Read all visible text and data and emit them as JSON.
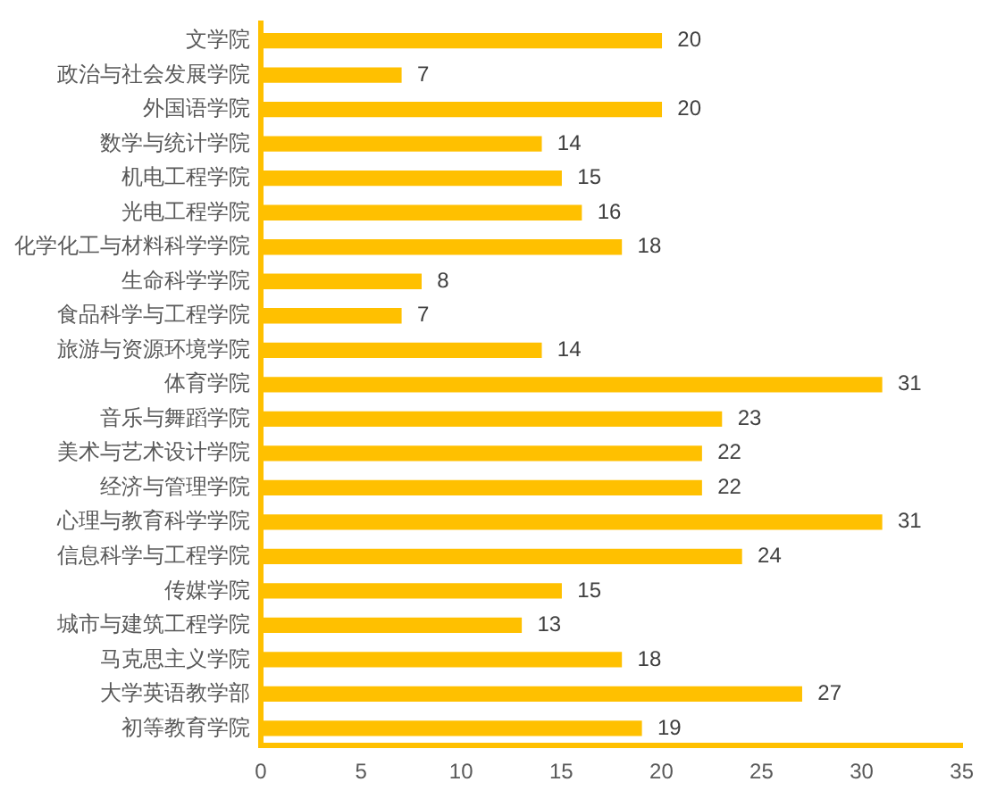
{
  "chart_data": {
    "type": "bar",
    "orientation": "horizontal",
    "categories": [
      "文学院",
      "政治与社会发展学院",
      "外国语学院",
      "数学与统计学院",
      "机电工程学院",
      "光电工程学院",
      "化学化工与材料科学学院",
      "生命科学学院",
      "食品科学与工程学院",
      "旅游与资源环境学院",
      "体育学院",
      "音乐与舞蹈学院",
      "美术与艺术设计学院",
      "经济与管理学院",
      "心理与教育科学学院",
      "信息科学与工程学院",
      "传媒学院",
      "城市与建筑工程学院",
      "马克思主义学院",
      "大学英语教学部",
      "初等教育学院"
    ],
    "values": [
      20,
      7,
      20,
      14,
      15,
      16,
      18,
      8,
      7,
      14,
      31,
      23,
      22,
      22,
      31,
      24,
      15,
      13,
      18,
      27,
      19
    ],
    "color": "#ffc000",
    "xlim": [
      0,
      35
    ],
    "xticks": [
      0,
      5,
      10,
      15,
      20,
      25,
      30,
      35
    ],
    "data_labels": true,
    "grid": false,
    "legend": false
  }
}
